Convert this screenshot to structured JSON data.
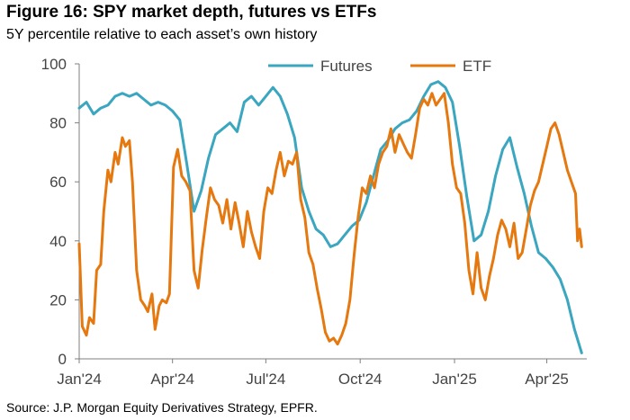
{
  "title": "Figure 16: SPY market depth, futures vs ETFs",
  "subtitle": "5Y percentile relative to each asset’s own history",
  "source": "Source: J.P. Morgan Equity Derivatives Strategy, EPFR.",
  "colors": {
    "Futures": "#3aa6bf",
    "ETF": "#e5780f",
    "axis": "#7f7f7f"
  },
  "chart_data": {
    "type": "line",
    "title": "Figure 16: SPY market depth, futures vs ETFs",
    "subtitle": "5Y percentile relative to each asset’s own history",
    "xlabel": "",
    "ylabel": "",
    "ylim": [
      0,
      100
    ],
    "yticks": [
      0,
      20,
      40,
      60,
      80,
      100
    ],
    "xlim": [
      "2024-01-01",
      "2025-05-10"
    ],
    "xticks": [
      {
        "date": "2024-01-01",
        "label": "Jan'24"
      },
      {
        "date": "2024-04-01",
        "label": "Apr'24"
      },
      {
        "date": "2024-07-01",
        "label": "Jul'24"
      },
      {
        "date": "2024-10-01",
        "label": "Oct'24"
      },
      {
        "date": "2025-01-01",
        "label": "Jan'25"
      },
      {
        "date": "2025-04-01",
        "label": "Apr'25"
      }
    ],
    "legend": "top-center",
    "grid": false,
    "series": [
      {
        "name": "Futures",
        "points": [
          [
            "2024-01-01",
            85
          ],
          [
            "2024-01-08",
            87
          ],
          [
            "2024-01-15",
            83
          ],
          [
            "2024-01-22",
            85
          ],
          [
            "2024-01-29",
            86
          ],
          [
            "2024-02-05",
            89
          ],
          [
            "2024-02-12",
            90
          ],
          [
            "2024-02-19",
            89
          ],
          [
            "2024-02-26",
            90
          ],
          [
            "2024-03-04",
            88
          ],
          [
            "2024-03-11",
            86
          ],
          [
            "2024-03-18",
            87
          ],
          [
            "2024-03-25",
            86
          ],
          [
            "2024-04-01",
            84
          ],
          [
            "2024-04-08",
            81
          ],
          [
            "2024-04-15",
            66
          ],
          [
            "2024-04-22",
            50
          ],
          [
            "2024-04-29",
            57
          ],
          [
            "2024-05-06",
            68
          ],
          [
            "2024-05-13",
            76
          ],
          [
            "2024-05-20",
            78
          ],
          [
            "2024-05-27",
            80
          ],
          [
            "2024-06-03",
            77
          ],
          [
            "2024-06-10",
            87
          ],
          [
            "2024-06-17",
            89
          ],
          [
            "2024-06-24",
            86
          ],
          [
            "2024-07-01",
            89
          ],
          [
            "2024-07-08",
            92
          ],
          [
            "2024-07-15",
            89
          ],
          [
            "2024-07-22",
            83
          ],
          [
            "2024-07-29",
            75
          ],
          [
            "2024-08-05",
            58
          ],
          [
            "2024-08-12",
            50
          ],
          [
            "2024-08-19",
            44
          ],
          [
            "2024-08-26",
            42
          ],
          [
            "2024-09-02",
            38
          ],
          [
            "2024-09-09",
            39
          ],
          [
            "2024-09-16",
            42
          ],
          [
            "2024-09-23",
            45
          ],
          [
            "2024-09-30",
            47
          ],
          [
            "2024-10-07",
            53
          ],
          [
            "2024-10-14",
            62
          ],
          [
            "2024-10-21",
            71
          ],
          [
            "2024-10-28",
            74
          ],
          [
            "2024-11-04",
            78
          ],
          [
            "2024-11-11",
            80
          ],
          [
            "2024-11-18",
            81
          ],
          [
            "2024-11-25",
            84
          ],
          [
            "2024-12-02",
            89
          ],
          [
            "2024-12-09",
            93
          ],
          [
            "2024-12-16",
            94
          ],
          [
            "2024-12-23",
            92
          ],
          [
            "2024-12-30",
            87
          ],
          [
            "2025-01-06",
            72
          ],
          [
            "2025-01-13",
            55
          ],
          [
            "2025-01-20",
            40
          ],
          [
            "2025-01-27",
            42
          ],
          [
            "2025-02-03",
            50
          ],
          [
            "2025-02-10",
            62
          ],
          [
            "2025-02-17",
            71
          ],
          [
            "2025-02-24",
            75
          ],
          [
            "2025-03-03",
            65
          ],
          [
            "2025-03-10",
            56
          ],
          [
            "2025-03-17",
            45
          ],
          [
            "2025-03-24",
            36
          ],
          [
            "2025-03-31",
            34
          ],
          [
            "2025-04-07",
            31
          ],
          [
            "2025-04-14",
            27
          ],
          [
            "2025-04-21",
            20
          ],
          [
            "2025-04-28",
            10
          ],
          [
            "2025-05-05",
            2
          ]
        ]
      },
      {
        "name": "ETF",
        "points": [
          [
            "2024-01-01",
            39
          ],
          [
            "2024-01-04",
            11
          ],
          [
            "2024-01-08",
            8
          ],
          [
            "2024-01-11",
            14
          ],
          [
            "2024-01-15",
            12
          ],
          [
            "2024-01-18",
            30
          ],
          [
            "2024-01-22",
            32
          ],
          [
            "2024-01-25",
            50
          ],
          [
            "2024-01-29",
            64
          ],
          [
            "2024-02-01",
            60
          ],
          [
            "2024-02-05",
            70
          ],
          [
            "2024-02-08",
            66
          ],
          [
            "2024-02-12",
            75
          ],
          [
            "2024-02-15",
            72
          ],
          [
            "2024-02-19",
            74
          ],
          [
            "2024-02-22",
            60
          ],
          [
            "2024-02-26",
            30
          ],
          [
            "2024-03-01",
            20
          ],
          [
            "2024-03-05",
            18
          ],
          [
            "2024-03-08",
            16
          ],
          [
            "2024-03-12",
            22
          ],
          [
            "2024-03-15",
            10
          ],
          [
            "2024-03-19",
            18
          ],
          [
            "2024-03-22",
            20
          ],
          [
            "2024-03-26",
            19
          ],
          [
            "2024-03-29",
            22
          ],
          [
            "2024-04-02",
            65
          ],
          [
            "2024-04-06",
            71
          ],
          [
            "2024-04-10",
            62
          ],
          [
            "2024-04-14",
            60
          ],
          [
            "2024-04-18",
            57
          ],
          [
            "2024-04-22",
            30
          ],
          [
            "2024-04-26",
            24
          ],
          [
            "2024-04-30",
            37
          ],
          [
            "2024-05-04",
            48
          ],
          [
            "2024-05-08",
            58
          ],
          [
            "2024-05-12",
            54
          ],
          [
            "2024-05-16",
            52
          ],
          [
            "2024-05-20",
            46
          ],
          [
            "2024-05-24",
            54
          ],
          [
            "2024-05-28",
            44
          ],
          [
            "2024-06-01",
            53
          ],
          [
            "2024-06-05",
            46
          ],
          [
            "2024-06-09",
            38
          ],
          [
            "2024-06-13",
            50
          ],
          [
            "2024-06-17",
            43
          ],
          [
            "2024-06-21",
            38
          ],
          [
            "2024-06-25",
            34
          ],
          [
            "2024-06-29",
            50
          ],
          [
            "2024-07-03",
            58
          ],
          [
            "2024-07-07",
            56
          ],
          [
            "2024-07-11",
            64
          ],
          [
            "2024-07-15",
            70
          ],
          [
            "2024-07-19",
            62
          ],
          [
            "2024-07-23",
            67
          ],
          [
            "2024-07-27",
            66
          ],
          [
            "2024-07-31",
            70
          ],
          [
            "2024-08-04",
            54
          ],
          [
            "2024-08-08",
            48
          ],
          [
            "2024-08-12",
            36
          ],
          [
            "2024-08-16",
            32
          ],
          [
            "2024-08-20",
            24
          ],
          [
            "2024-08-24",
            17
          ],
          [
            "2024-08-28",
            9
          ],
          [
            "2024-09-01",
            6
          ],
          [
            "2024-09-05",
            7
          ],
          [
            "2024-09-09",
            5
          ],
          [
            "2024-09-13",
            8
          ],
          [
            "2024-09-17",
            12
          ],
          [
            "2024-09-21",
            20
          ],
          [
            "2024-09-25",
            35
          ],
          [
            "2024-09-29",
            48
          ],
          [
            "2024-10-03",
            58
          ],
          [
            "2024-10-07",
            56
          ],
          [
            "2024-10-11",
            62
          ],
          [
            "2024-10-15",
            58
          ],
          [
            "2024-10-19",
            66
          ],
          [
            "2024-10-23",
            70
          ],
          [
            "2024-10-27",
            72
          ],
          [
            "2024-10-31",
            78
          ],
          [
            "2024-11-04",
            70
          ],
          [
            "2024-11-08",
            76
          ],
          [
            "2024-11-12",
            73
          ],
          [
            "2024-11-16",
            70
          ],
          [
            "2024-11-20",
            68
          ],
          [
            "2024-11-24",
            76
          ],
          [
            "2024-11-28",
            85
          ],
          [
            "2024-12-02",
            88
          ],
          [
            "2024-12-06",
            86
          ],
          [
            "2024-12-10",
            90
          ],
          [
            "2024-12-14",
            86
          ],
          [
            "2024-12-18",
            88
          ],
          [
            "2024-12-22",
            90
          ],
          [
            "2024-12-26",
            80
          ],
          [
            "2024-12-30",
            66
          ],
          [
            "2025-01-03",
            58
          ],
          [
            "2025-01-07",
            56
          ],
          [
            "2025-01-11",
            46
          ],
          [
            "2025-01-15",
            30
          ],
          [
            "2025-01-19",
            22
          ],
          [
            "2025-01-23",
            36
          ],
          [
            "2025-01-27",
            24
          ],
          [
            "2025-01-31",
            20
          ],
          [
            "2025-02-04",
            28
          ],
          [
            "2025-02-08",
            34
          ],
          [
            "2025-02-12",
            42
          ],
          [
            "2025-02-16",
            47
          ],
          [
            "2025-02-20",
            44
          ],
          [
            "2025-02-24",
            38
          ],
          [
            "2025-02-28",
            46
          ],
          [
            "2025-03-04",
            34
          ],
          [
            "2025-03-08",
            36
          ],
          [
            "2025-03-12",
            44
          ],
          [
            "2025-03-16",
            52
          ],
          [
            "2025-03-20",
            57
          ],
          [
            "2025-03-24",
            60
          ],
          [
            "2025-03-28",
            66
          ],
          [
            "2025-04-01",
            72
          ],
          [
            "2025-04-05",
            78
          ],
          [
            "2025-04-09",
            80
          ],
          [
            "2025-04-13",
            76
          ],
          [
            "2025-04-17",
            70
          ],
          [
            "2025-04-21",
            64
          ],
          [
            "2025-04-25",
            60
          ],
          [
            "2025-04-29",
            56
          ],
          [
            "2025-05-01",
            40
          ],
          [
            "2025-05-03",
            44
          ],
          [
            "2025-05-05",
            38
          ]
        ]
      }
    ]
  }
}
